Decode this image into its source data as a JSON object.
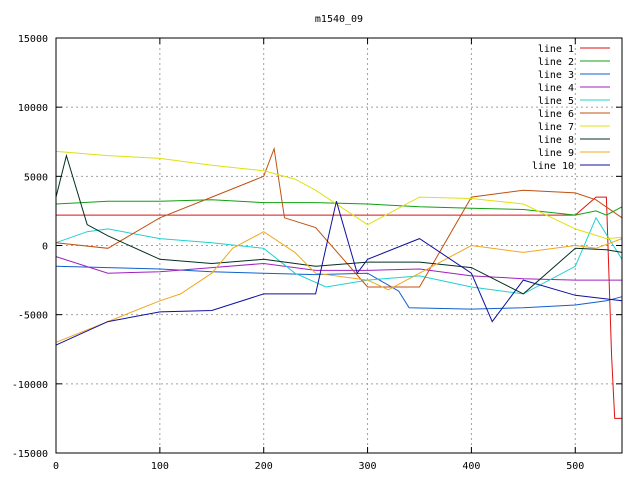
{
  "chart_data": {
    "type": "line",
    "title": "m1540_09",
    "xlabel": "",
    "ylabel": "",
    "xlim": [
      0,
      545
    ],
    "ylim": [
      -15000,
      15000
    ],
    "x_ticks": [
      0,
      100,
      200,
      300,
      400,
      500
    ],
    "y_ticks": [
      -15000,
      -10000,
      -5000,
      0,
      5000,
      10000,
      15000
    ],
    "grid": true,
    "legend_position": "top-right",
    "series": [
      {
        "name": "line 1",
        "color": "#e01010",
        "points": [
          [
            0,
            2200
          ],
          [
            100,
            2200
          ],
          [
            200,
            2200
          ],
          [
            300,
            2200
          ],
          [
            400,
            2200
          ],
          [
            500,
            2200
          ],
          [
            520,
            3500
          ],
          [
            530,
            3500
          ],
          [
            535,
            -8000
          ],
          [
            538,
            -12500
          ],
          [
            545,
            -12500
          ]
        ]
      },
      {
        "name": "line 2",
        "color": "#10a010",
        "points": [
          [
            0,
            3000
          ],
          [
            50,
            3200
          ],
          [
            100,
            3200
          ],
          [
            150,
            3300
          ],
          [
            200,
            3100
          ],
          [
            250,
            3100
          ],
          [
            300,
            3000
          ],
          [
            350,
            2800
          ],
          [
            400,
            2700
          ],
          [
            450,
            2600
          ],
          [
            500,
            2200
          ],
          [
            520,
            2500
          ],
          [
            530,
            2200
          ],
          [
            545,
            2800
          ]
        ]
      },
      {
        "name": "line 3",
        "color": "#1060d0",
        "points": [
          [
            0,
            -1500
          ],
          [
            50,
            -1600
          ],
          [
            100,
            -1700
          ],
          [
            150,
            -1900
          ],
          [
            200,
            -2000
          ],
          [
            250,
            -2100
          ],
          [
            300,
            -2000
          ],
          [
            330,
            -3300
          ],
          [
            340,
            -4500
          ],
          [
            400,
            -4600
          ],
          [
            450,
            -4500
          ],
          [
            500,
            -4300
          ],
          [
            530,
            -4000
          ],
          [
            545,
            -3700
          ]
        ]
      },
      {
        "name": "line 4",
        "color": "#a020c0",
        "points": [
          [
            0,
            -800
          ],
          [
            50,
            -2000
          ],
          [
            100,
            -1900
          ],
          [
            150,
            -1600
          ],
          [
            200,
            -1300
          ],
          [
            250,
            -1800
          ],
          [
            300,
            -1800
          ],
          [
            350,
            -1700
          ],
          [
            400,
            -2200
          ],
          [
            450,
            -2400
          ],
          [
            500,
            -2500
          ],
          [
            545,
            -2500
          ]
        ]
      },
      {
        "name": "line 5",
        "color": "#20d0d0",
        "points": [
          [
            0,
            200
          ],
          [
            30,
            1000
          ],
          [
            50,
            1200
          ],
          [
            100,
            500
          ],
          [
            150,
            200
          ],
          [
            200,
            -200
          ],
          [
            230,
            -2000
          ],
          [
            260,
            -3000
          ],
          [
            300,
            -2500
          ],
          [
            350,
            -2200
          ],
          [
            400,
            -3000
          ],
          [
            450,
            -3500
          ],
          [
            500,
            -1500
          ],
          [
            520,
            2000
          ],
          [
            545,
            -1000
          ]
        ]
      },
      {
        "name": "line 6",
        "color": "#c05010",
        "points": [
          [
            0,
            200
          ],
          [
            50,
            -200
          ],
          [
            100,
            2000
          ],
          [
            150,
            3500
          ],
          [
            200,
            5000
          ],
          [
            210,
            7000
          ],
          [
            220,
            2000
          ],
          [
            250,
            1300
          ],
          [
            300,
            -3000
          ],
          [
            350,
            -3000
          ],
          [
            400,
            3500
          ],
          [
            450,
            4000
          ],
          [
            500,
            3800
          ],
          [
            520,
            3300
          ],
          [
            545,
            2000
          ]
        ]
      },
      {
        "name": "line 7",
        "color": "#e0e010",
        "points": [
          [
            0,
            6800
          ],
          [
            50,
            6500
          ],
          [
            100,
            6300
          ],
          [
            150,
            5800
          ],
          [
            200,
            5400
          ],
          [
            230,
            4800
          ],
          [
            250,
            4000
          ],
          [
            300,
            1500
          ],
          [
            350,
            3500
          ],
          [
            400,
            3400
          ],
          [
            450,
            3000
          ],
          [
            500,
            1200
          ],
          [
            530,
            500
          ],
          [
            545,
            600
          ]
        ]
      },
      {
        "name": "line 8",
        "color": "#003020",
        "points": [
          [
            0,
            3500
          ],
          [
            10,
            6500
          ],
          [
            30,
            1500
          ],
          [
            50,
            700
          ],
          [
            100,
            -1000
          ],
          [
            150,
            -1300
          ],
          [
            200,
            -1000
          ],
          [
            250,
            -1500
          ],
          [
            300,
            -1200
          ],
          [
            350,
            -1200
          ],
          [
            400,
            -1600
          ],
          [
            450,
            -3500
          ],
          [
            500,
            -200
          ],
          [
            530,
            -300
          ],
          [
            545,
            -500
          ]
        ]
      },
      {
        "name": "line 9",
        "color": "#f0a820",
        "points": [
          [
            0,
            -7000
          ],
          [
            50,
            -5500
          ],
          [
            100,
            -4000
          ],
          [
            120,
            -3500
          ],
          [
            150,
            -2000
          ],
          [
            170,
            -200
          ],
          [
            200,
            1000
          ],
          [
            230,
            -500
          ],
          [
            250,
            -2000
          ],
          [
            300,
            -2500
          ],
          [
            320,
            -3200
          ],
          [
            350,
            -2000
          ],
          [
            400,
            0
          ],
          [
            450,
            -500
          ],
          [
            500,
            0
          ],
          [
            520,
            -200
          ],
          [
            545,
            500
          ]
        ]
      },
      {
        "name": "line 10",
        "color": "#1010a0",
        "points": [
          [
            0,
            -7200
          ],
          [
            50,
            -5500
          ],
          [
            100,
            -4800
          ],
          [
            150,
            -4700
          ],
          [
            200,
            -3500
          ],
          [
            250,
            -3500
          ],
          [
            270,
            3200
          ],
          [
            290,
            -2000
          ],
          [
            300,
            -1000
          ],
          [
            350,
            500
          ],
          [
            400,
            -2000
          ],
          [
            420,
            -5500
          ],
          [
            450,
            -2500
          ],
          [
            500,
            -3600
          ],
          [
            545,
            -4000
          ]
        ]
      }
    ]
  }
}
